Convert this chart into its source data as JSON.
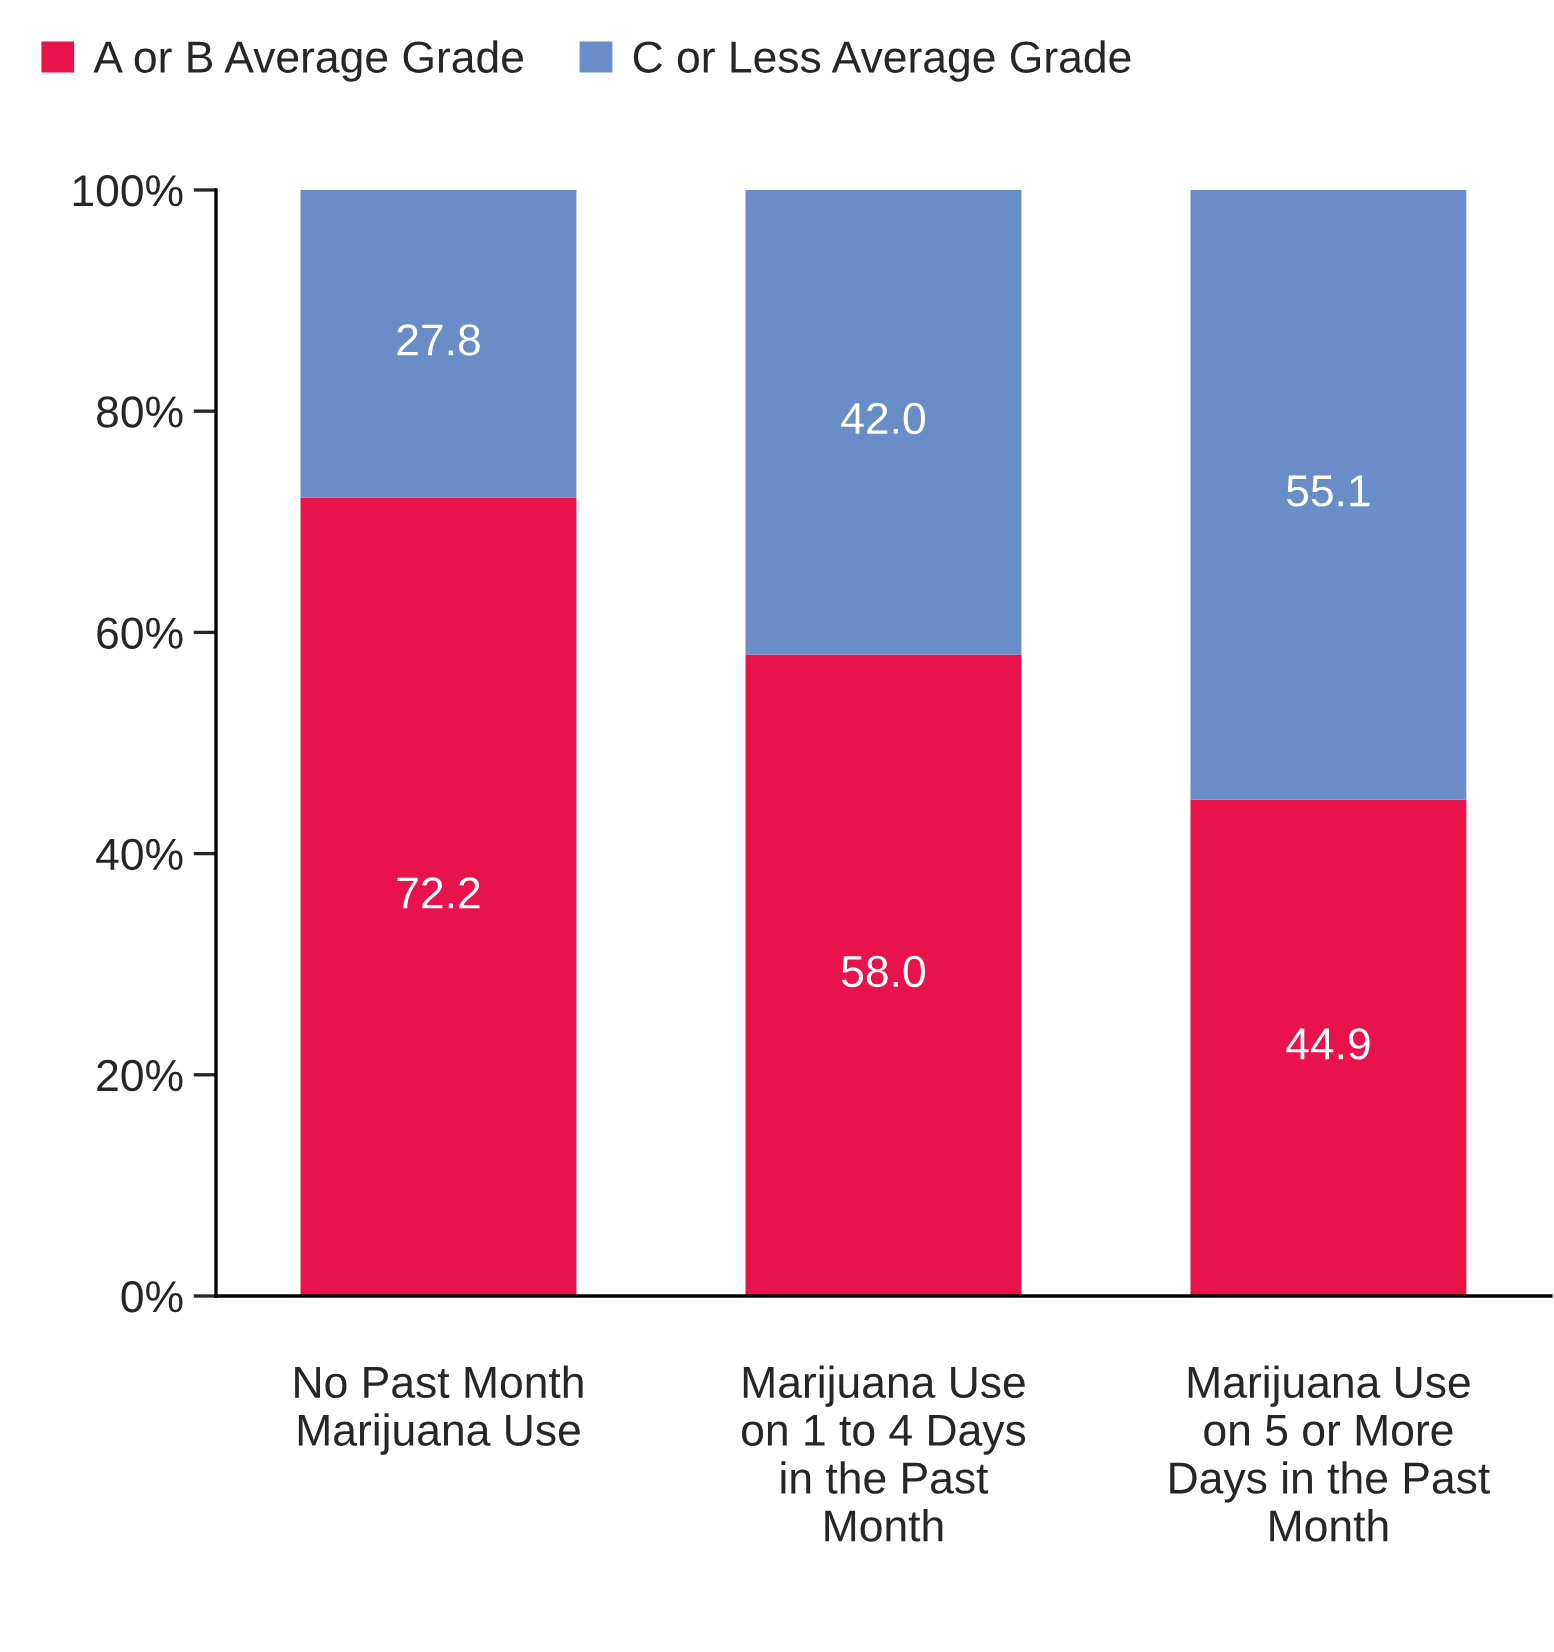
{
  "chart_data": {
    "type": "bar",
    "stacked": true,
    "categories": [
      "No Past Month\nMarijuana Use",
      "Marijuana Use\non 1 to 4 Days\nin the Past\nMonth",
      "Marijuana Use\non 5 or More\nDays in the Past\nMonth"
    ],
    "series": [
      {
        "name": "A or B Average Grade",
        "color": "#e8134b",
        "values": [
          72.2,
          58.0,
          44.9
        ]
      },
      {
        "name": "C or Less Average Grade",
        "color": "#6a8cc7",
        "values": [
          27.8,
          42.0,
          55.1
        ]
      }
    ],
    "value_labels": [
      [
        "72.2",
        "58.0",
        "44.9"
      ],
      [
        "27.8",
        "42.0",
        "55.1"
      ]
    ],
    "ylim": [
      0,
      100
    ],
    "yticks": [
      {
        "value": 0,
        "label": "0%"
      },
      {
        "value": 20,
        "label": "20%"
      },
      {
        "value": 40,
        "label": "40%"
      },
      {
        "value": 60,
        "label": "60%"
      },
      {
        "value": 80,
        "label": "80%"
      },
      {
        "value": 100,
        "label": "100%"
      }
    ],
    "grid": false,
    "legend": "top"
  }
}
